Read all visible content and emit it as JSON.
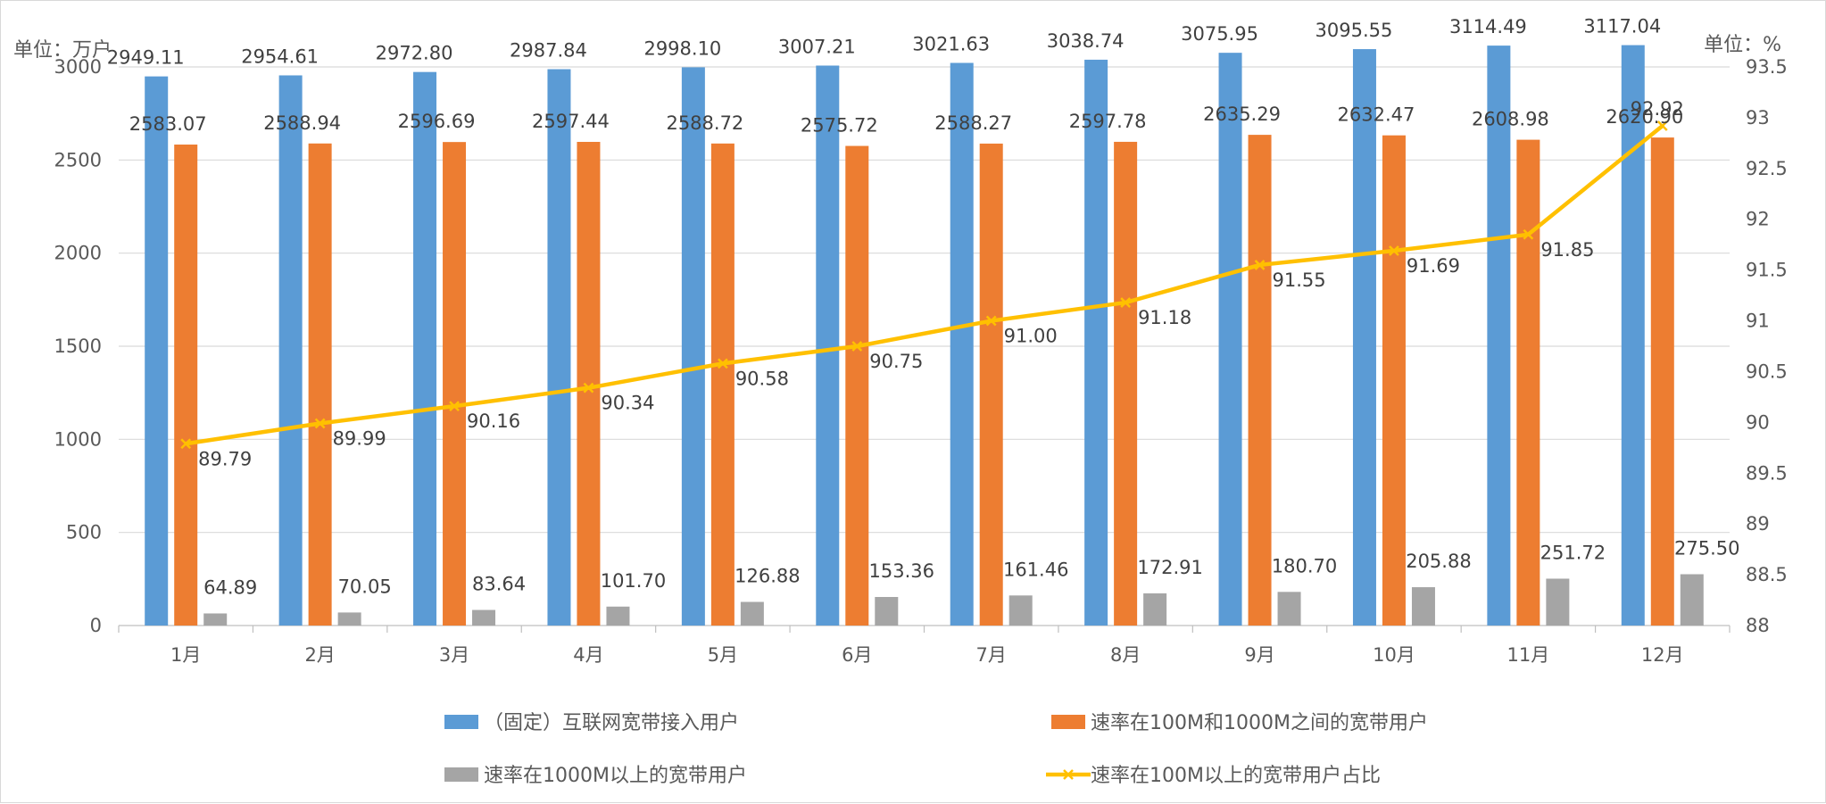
{
  "chart_data": {
    "type": "bar",
    "categories": [
      "1月",
      "2月",
      "3月",
      "4月",
      "5月",
      "6月",
      "7月",
      "8月",
      "9月",
      "10月",
      "11月",
      "12月"
    ],
    "left_unit": "单位：万户",
    "right_unit": "单位：%",
    "ylim_left": [
      0,
      3000
    ],
    "yticks_left": [
      "0",
      "500",
      "1000",
      "1500",
      "2000",
      "2500",
      "3000"
    ],
    "ylim_right": [
      88,
      93.5
    ],
    "yticks_right": [
      "88",
      "88.5",
      "89",
      "89.5",
      "90",
      "90.5",
      "91",
      "91.5",
      "92",
      "92.5",
      "93",
      "93.5"
    ],
    "grid": true,
    "legend_position": "bottom",
    "series": [
      {
        "name": "（固定）互联网宽带接入用户",
        "type": "bar",
        "axis": "left",
        "color": "#5B9BD5",
        "values": [
          2949.11,
          2954.61,
          2972.8,
          2987.84,
          2998.1,
          3007.21,
          3021.63,
          3038.74,
          3075.95,
          3095.55,
          3114.49,
          3117.04
        ],
        "labels": [
          "2949.11",
          "2954.61",
          "2972.80",
          "2987.84",
          "2998.10",
          "3007.21",
          "3021.63",
          "3038.74",
          "3075.95",
          "3095.55",
          "3114.49",
          "3117.04"
        ]
      },
      {
        "name": "速率在100M和1000M之间的宽带用户",
        "type": "bar",
        "axis": "left",
        "color": "#ED7D31",
        "values": [
          2583.07,
          2588.94,
          2596.69,
          2597.44,
          2588.72,
          2575.72,
          2588.27,
          2597.78,
          2635.29,
          2632.47,
          2608.98,
          2620.9
        ],
        "labels": [
          "2583.07",
          "2588.94",
          "2596.69",
          "2597.44",
          "2588.72",
          "2575.72",
          "2588.27",
          "2597.78",
          "2635.29",
          "2632.47",
          "2608.98",
          "2620.90"
        ]
      },
      {
        "name": "速率在1000M以上的宽带用户",
        "type": "bar",
        "axis": "left",
        "color": "#A5A5A5",
        "values": [
          64.89,
          70.05,
          83.64,
          101.7,
          126.88,
          153.36,
          161.46,
          172.91,
          180.7,
          205.88,
          251.72,
          275.5
        ],
        "labels": [
          "64.89",
          "70.05",
          "83.64",
          "101.70",
          "126.88",
          "153.36",
          "161.46",
          "172.91",
          "180.70",
          "205.88",
          "251.72",
          "275.50"
        ]
      },
      {
        "name": "速率在100M以上的宽带用户占比",
        "type": "line",
        "axis": "right",
        "color": "#FFC000",
        "values": [
          89.79,
          89.99,
          90.16,
          90.34,
          90.58,
          90.75,
          91.0,
          91.18,
          91.55,
          91.69,
          91.85,
          92.92
        ],
        "labels": [
          "89.79",
          "89.99",
          "90.16",
          "90.34",
          "90.58",
          "90.75",
          "91.00",
          "91.18",
          "91.55",
          "91.69",
          "91.85",
          "92.92"
        ]
      }
    ]
  }
}
